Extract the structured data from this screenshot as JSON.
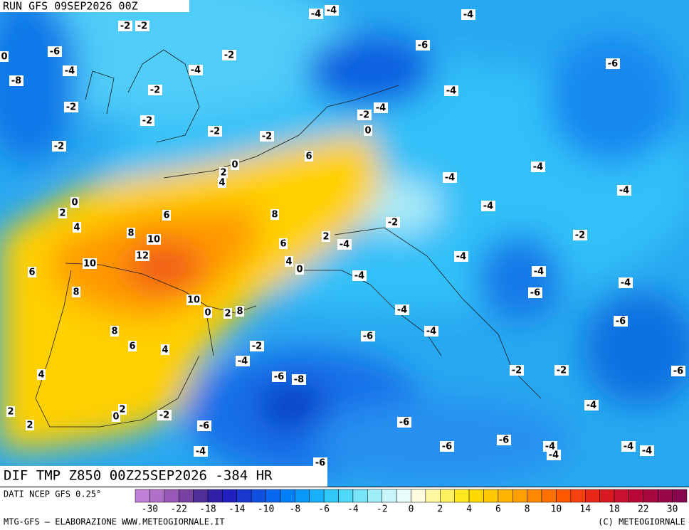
{
  "header": {
    "run": "RUN GFS 09SEP2026 00Z"
  },
  "footer": {
    "title": "DIF TMP Z850 00Z25SEP2026 -384 HR",
    "source": "DATI NCEP GFS 0.25°",
    "credit": "MTG-GFS — ELABORAZIONE WWW.METEOGIORNALE.IT",
    "copyright": "(C) METEOGIORNALE"
  },
  "labels": [
    "-4",
    "-4",
    "-4",
    "-2",
    "-2",
    "-6",
    "0",
    "-6",
    "-2",
    "-4",
    "-4",
    "-6",
    "-8",
    "-2",
    "-4",
    "-2",
    "-2",
    "-2",
    "-4",
    "-2",
    "0",
    "-2",
    "-2",
    "6",
    "0",
    "2",
    "4",
    "-4",
    "-4",
    "-4",
    "0",
    "2",
    "6",
    "8",
    "-4",
    "4",
    "8",
    "10",
    "-2",
    "-2",
    "2",
    "-4",
    "6",
    "12",
    "10",
    "4",
    "0",
    "-4",
    "6",
    "-4",
    "-4",
    "8",
    "-6",
    "-4",
    "10",
    "0",
    "2",
    "8",
    "-4",
    "-6",
    "-4",
    "-6",
    "8",
    "6",
    "4",
    "-2",
    "-4",
    "-6",
    "-8",
    "-2",
    "-2",
    "-6",
    "4",
    "2",
    "0",
    "2",
    "-2",
    "-4",
    "2",
    "-6",
    "-6",
    "-6",
    "-6",
    "-4",
    "-4",
    "-4",
    "-4",
    "-4",
    "-6"
  ],
  "colorbar": {
    "colors": [
      "#c080d8",
      "#b070c8",
      "#9858b8",
      "#7840a0",
      "#503098",
      "#3020a8",
      "#2020c0",
      "#1838d0",
      "#1050e0",
      "#0868f0",
      "#0080f8",
      "#0898f8",
      "#18b0f8",
      "#30c8f8",
      "#50d8f8",
      "#78e4f8",
      "#a0eef8",
      "#c8f6fa",
      "#e8fcfc",
      "#fffce0",
      "#fff8a0",
      "#fff060",
      "#ffe820",
      "#ffd800",
      "#ffc800",
      "#ffb400",
      "#ffa000",
      "#ff8800",
      "#ff7000",
      "#ff5800",
      "#f84010",
      "#e82818",
      "#d81820",
      "#c81030",
      "#b80838",
      "#a80840",
      "#980848",
      "#880850"
    ],
    "ticks": [
      -30,
      -22,
      -18,
      -14,
      -10,
      -8,
      -6,
      -4,
      -2,
      0,
      2,
      4,
      6,
      8,
      10,
      14,
      18,
      22,
      30
    ]
  }
}
